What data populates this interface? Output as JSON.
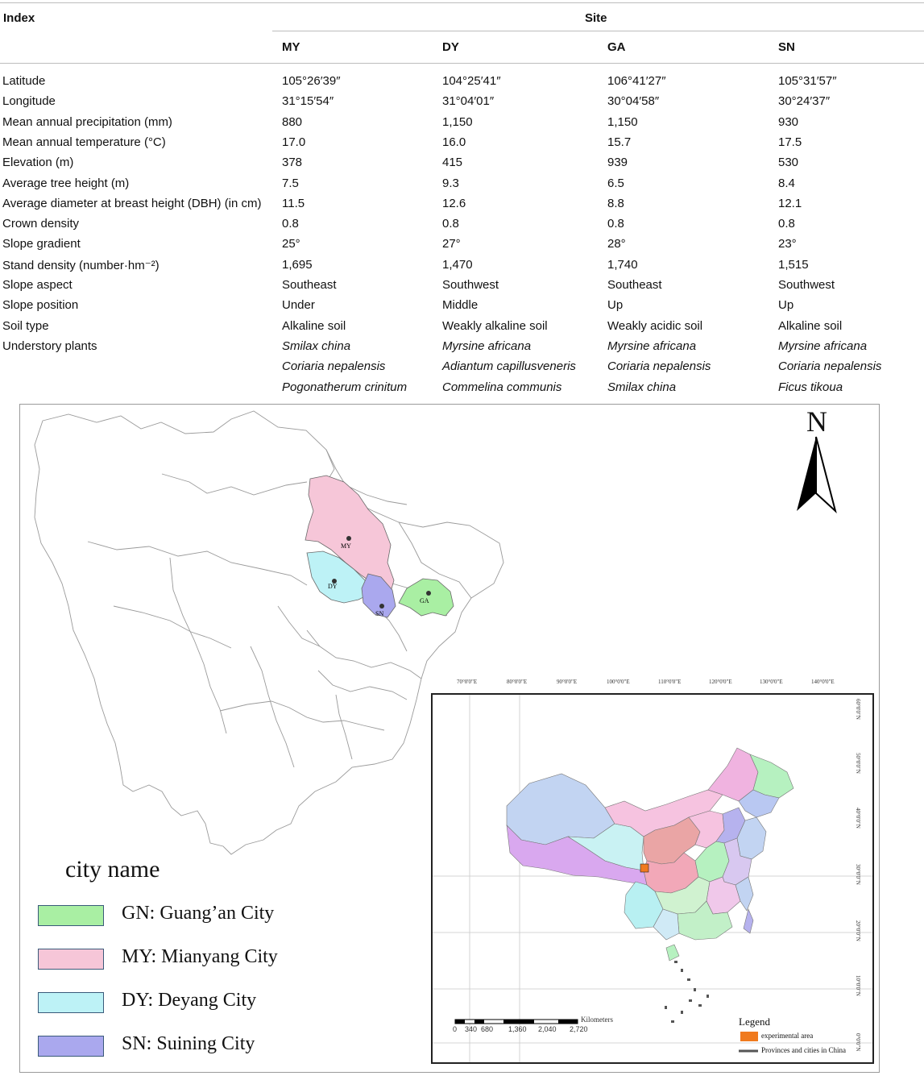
{
  "table": {
    "index_header": "Index",
    "site_header": "Site",
    "sites": [
      "MY",
      "DY",
      "GA",
      "SN"
    ],
    "rows": [
      {
        "label": "Latitude",
        "values": [
          "105°26′39″",
          "104°25′41″",
          "106°41′27″",
          "105°31′57″"
        ]
      },
      {
        "label": "Longitude",
        "values": [
          "31°15′54″",
          "31°04′01″",
          "30°04′58″",
          "30°24′37″"
        ]
      },
      {
        "label": "Mean annual precipitation (mm)",
        "values": [
          "880",
          "1,150",
          "1,150",
          "930"
        ]
      },
      {
        "label": "Mean annual temperature (°C)",
        "values": [
          "17.0",
          "16.0",
          "15.7",
          "17.5"
        ]
      },
      {
        "label": "Elevation (m)",
        "values": [
          "378",
          "415",
          "939",
          "530"
        ]
      },
      {
        "label": "Average tree height (m)",
        "values": [
          "7.5",
          "9.3",
          "6.5",
          "8.4"
        ]
      },
      {
        "label": "Average diameter at breast height (DBH) (in cm)",
        "values": [
          "11.5",
          "12.6",
          "8.8",
          "12.1"
        ]
      },
      {
        "label": "Crown density",
        "values": [
          "0.8",
          "0.8",
          "0.8",
          "0.8"
        ]
      },
      {
        "label": "Slope gradient",
        "values": [
          "25°",
          "27°",
          "28°",
          "23°"
        ]
      },
      {
        "label": "Stand density (number·hm⁻²)",
        "values": [
          "1,695",
          "1,470",
          "1,740",
          "1,515"
        ]
      },
      {
        "label": "Slope aspect",
        "values": [
          "Southeast",
          "Southwest",
          "Southeast",
          "Southwest"
        ]
      },
      {
        "label": "Slope position",
        "values": [
          "Under",
          "Middle",
          "Up",
          "Up"
        ]
      },
      {
        "label": "Soil type",
        "values": [
          "Alkaline soil",
          "Weakly alkaline soil",
          "Weakly acidic soil",
          "Alkaline soil"
        ]
      },
      {
        "label": "Understory plants",
        "values": [
          "Smilax china",
          "Myrsine africana",
          "Myrsine africana",
          "Myrsine africana"
        ],
        "italic": true
      },
      {
        "label": "",
        "values": [
          "Coriaria nepalensis",
          "Adiantum capillusveneris",
          "Coriaria nepalensis",
          "Coriaria nepalensis"
        ],
        "italic": true
      },
      {
        "label": "",
        "values": [
          "Pogonatherum crinitum",
          "Commelina communis",
          "Smilax china",
          "Ficus tikoua"
        ],
        "italic": true
      }
    ]
  },
  "map": {
    "north_label": "N",
    "city_markers": [
      "MY",
      "DY",
      "SN",
      "GA"
    ],
    "legend_title": "city name",
    "legend": [
      {
        "label": "GN: Guang’an City",
        "color": "#a9efa3"
      },
      {
        "label": "MY: Mianyang City",
        "color": "#f6c6d8"
      },
      {
        "label": "DY: Deyang City",
        "color": "#bdf2f6"
      },
      {
        "label": "SN: Suining City",
        "color": "#aaa8ee"
      }
    ],
    "inset": {
      "lon_ticks": [
        "70°0'0\"E",
        "80°0'0\"E",
        "90°0'0\"E",
        "100°0'0\"E",
        "110°0'0\"E",
        "120°0'0\"E",
        "130°0'0\"E",
        "140°0'0\"E"
      ],
      "lat_ticks": [
        "60°0'0\"N",
        "50°0'0\"N",
        "40°0'0\"N",
        "30°0'0\"N",
        "20°0'0\"N",
        "10°0'0\"N",
        "0°0'0\"N"
      ],
      "scale_unit": "Kilometers",
      "scale_ticks": [
        "0",
        "340",
        "680",
        "1,360",
        "2,040",
        "2,720"
      ],
      "legend_title": "Legend",
      "legend_items": [
        {
          "label": "experimental area",
          "color": "#f07a1e"
        },
        {
          "label": "Provinces and cities in China",
          "color": "#555555"
        }
      ]
    }
  }
}
